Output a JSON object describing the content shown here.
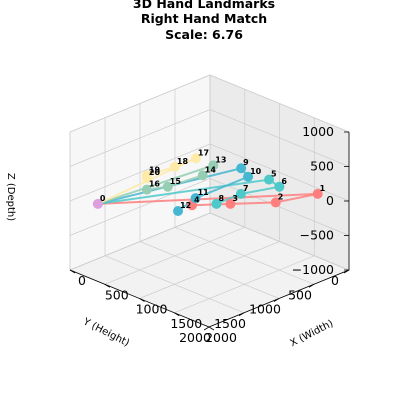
{
  "chart_data": {
    "type": "scatter",
    "title_lines": [
      "3D Hand Landmarks",
      "Right Hand Match",
      "Scale: 6.76"
    ],
    "xlabel": "X (Width)",
    "ylabel": "Y (Height)",
    "zlabel": "Z (Depth)",
    "xlim": [
      0,
      2000
    ],
    "ylim": [
      0,
      2000
    ],
    "zlim": [
      -1000,
      1000
    ],
    "x_ticks": [
      "0",
      "500",
      "1000",
      "1500",
      "2000"
    ],
    "y_ticks": [
      "0",
      "500",
      "1000",
      "1500",
      "2000"
    ],
    "z_ticks": [
      "1000",
      "500",
      "0",
      "−500",
      "−1000"
    ],
    "grid": true,
    "points": [
      {
        "id": "0",
        "x": 250,
        "y": 1850,
        "z": 0,
        "color": "#dda0dd"
      },
      {
        "id": "1",
        "x": 1650,
        "y": 100,
        "z": 0,
        "color": "#ff7f7f"
      },
      {
        "id": "2",
        "x": 1500,
        "y": 550,
        "z": 0,
        "color": "#ff7f7f"
      },
      {
        "id": "3",
        "x": 1200,
        "y": 900,
        "z": 0,
        "color": "#ff7f7f"
      },
      {
        "id": "4",
        "x": 950,
        "y": 1200,
        "z": 0,
        "color": "#ff7f7f"
      },
      {
        "id": "5",
        "x": 1050,
        "y": 200,
        "z": 0,
        "color": "#4ec9c9"
      },
      {
        "id": "6",
        "x": 1250,
        "y": 250,
        "z": 0,
        "color": "#4ec9c9"
      },
      {
        "id": "7",
        "x": 1100,
        "y": 650,
        "z": 0,
        "color": "#4ec9c9"
      },
      {
        "id": "8",
        "x": 1100,
        "y": 1000,
        "z": 0,
        "color": "#4ec9c9"
      },
      {
        "id": "9",
        "x": 650,
        "y": 200,
        "z": 0,
        "color": "#45b7d1"
      },
      {
        "id": "10",
        "x": 850,
        "y": 300,
        "z": 0,
        "color": "#45b7d1"
      },
      {
        "id": "11",
        "x": 850,
        "y": 1050,
        "z": 0,
        "color": "#45b7d1"
      },
      {
        "id": "12",
        "x": 950,
        "y": 1400,
        "z": 0,
        "color": "#45b7d1"
      },
      {
        "id": "13",
        "x": 400,
        "y": 350,
        "z": 0,
        "color": "#96ceb4"
      },
      {
        "id": "14",
        "x": 500,
        "y": 600,
        "z": 0,
        "color": "#96ceb4"
      },
      {
        "id": "15",
        "x": 450,
        "y": 1050,
        "z": 0,
        "color": "#96ceb4"
      },
      {
        "id": "16",
        "x": 350,
        "y": 1250,
        "z": 0,
        "color": "#96ceb4"
      },
      {
        "id": "17",
        "x": 150,
        "y": 350,
        "z": 0,
        "color": "#ffeaa7"
      },
      {
        "id": "18",
        "x": 150,
        "y": 650,
        "z": 0,
        "color": "#ffeaa7"
      },
      {
        "id": "19",
        "x": 100,
        "y": 1000,
        "z": 0,
        "color": "#ffeaa7"
      },
      {
        "id": "20",
        "x": 150,
        "y": 1050,
        "z": 0,
        "color": "#ffeaa7"
      }
    ],
    "connections": [
      {
        "from": "0",
        "to": "1",
        "color": "#ff7f7f"
      },
      {
        "from": "1",
        "to": "2",
        "color": "#ff7f7f"
      },
      {
        "from": "2",
        "to": "3",
        "color": "#ff7f7f"
      },
      {
        "from": "3",
        "to": "4",
        "color": "#ff7f7f"
      },
      {
        "from": "0",
        "to": "5",
        "color": "#4ec9c9"
      },
      {
        "from": "5",
        "to": "6",
        "color": "#4ec9c9"
      },
      {
        "from": "6",
        "to": "7",
        "color": "#4ec9c9"
      },
      {
        "from": "7",
        "to": "8",
        "color": "#4ec9c9"
      },
      {
        "from": "0",
        "to": "9",
        "color": "#45b7d1"
      },
      {
        "from": "9",
        "to": "10",
        "color": "#45b7d1"
      },
      {
        "from": "10",
        "to": "11",
        "color": "#45b7d1"
      },
      {
        "from": "11",
        "to": "12",
        "color": "#45b7d1"
      },
      {
        "from": "0",
        "to": "13",
        "color": "#96ceb4"
      },
      {
        "from": "13",
        "to": "14",
        "color": "#96ceb4"
      },
      {
        "from": "14",
        "to": "15",
        "color": "#96ceb4"
      },
      {
        "from": "15",
        "to": "16",
        "color": "#96ceb4"
      },
      {
        "from": "0",
        "to": "17",
        "color": "#ffeaa7"
      },
      {
        "from": "17",
        "to": "18",
        "color": "#ffeaa7"
      },
      {
        "from": "18",
        "to": "19",
        "color": "#ffeaa7"
      },
      {
        "from": "19",
        "to": "20",
        "color": "#ffeaa7"
      }
    ]
  }
}
